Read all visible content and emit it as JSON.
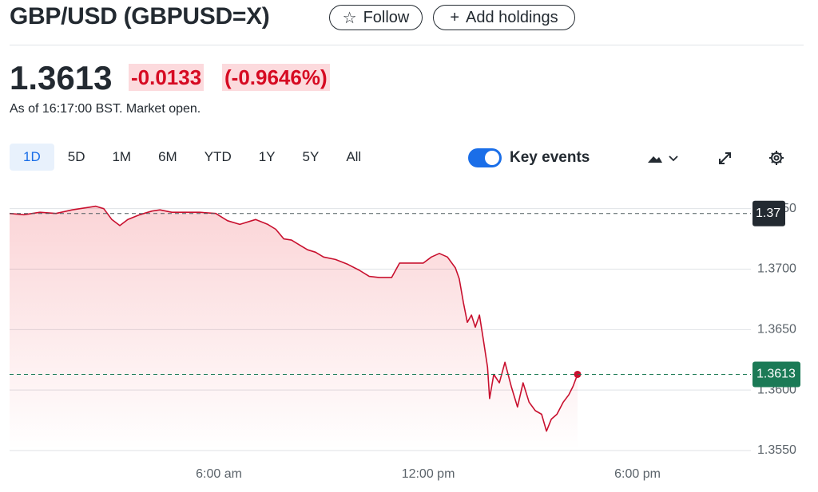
{
  "header": {
    "title": "GBP/USD (GBPUSD=X)",
    "follow": "Follow",
    "add_holdings": "Add holdings"
  },
  "quote": {
    "price": "1.3613",
    "change": "-0.0133",
    "change_percent": "(-0.9646%)",
    "as_of": "As of 16:17:00 BST. Market open."
  },
  "ranges": [
    "1D",
    "5D",
    "1M",
    "6M",
    "YTD",
    "1Y",
    "5Y",
    "All"
  ],
  "selected_range": "1D",
  "toggle": {
    "label": "Key events",
    "on": true
  },
  "chart_data": {
    "type": "line",
    "color": "#c8102e",
    "x": [
      0,
      0.41,
      0.87,
      1.33,
      1.79,
      2.24,
      2.47,
      2.7,
      2.93,
      3.16,
      3.39,
      3.73,
      4.08,
      4.31,
      4.65,
      4.99,
      5.45,
      5.91,
      6.25,
      6.6,
      7.05,
      7.4,
      7.63,
      7.86,
      8.08,
      8.31,
      8.54,
      8.77,
      9.0,
      9.34,
      9.69,
      10.03,
      10.31,
      10.6,
      10.95,
      11.18,
      11.52,
      11.86,
      12.09,
      12.32,
      12.55,
      12.78,
      12.89,
      13.01,
      13.12,
      13.24,
      13.35,
      13.47,
      13.58,
      13.7,
      13.76,
      13.88,
      14.04,
      14.2,
      14.38,
      14.56,
      14.72,
      14.89,
      15.07,
      15.25,
      15.39,
      15.53,
      15.69,
      15.87,
      16.03,
      16.15,
      16.28
    ],
    "values": [
      1.3746,
      1.3745,
      1.3747,
      1.3746,
      1.3749,
      1.3751,
      1.3752,
      1.375,
      1.3741,
      1.3736,
      1.3741,
      1.3745,
      1.3748,
      1.3749,
      1.3747,
      1.3747,
      1.3747,
      1.3746,
      1.374,
      1.3737,
      1.3741,
      1.3737,
      1.3733,
      1.3725,
      1.3724,
      1.372,
      1.3716,
      1.3714,
      1.371,
      1.3708,
      1.3704,
      1.3699,
      1.3694,
      1.3693,
      1.3693,
      1.3705,
      1.3705,
      1.3705,
      1.371,
      1.3713,
      1.371,
      1.3701,
      1.3692,
      1.3672,
      1.3656,
      1.3662,
      1.3652,
      1.3662,
      1.3642,
      1.3619,
      1.3593,
      1.3613,
      1.3606,
      1.3623,
      1.3603,
      1.3586,
      1.3606,
      1.359,
      1.3583,
      1.358,
      1.3566,
      1.3576,
      1.358,
      1.359,
      1.3596,
      1.3603,
      1.3613
    ],
    "xlim": [
      0,
      21.25
    ],
    "xticks": [
      {
        "value": 6,
        "label": "6:00 am"
      },
      {
        "value": 12,
        "label": "12:00 pm"
      },
      {
        "value": 18,
        "label": "6:00 pm"
      }
    ],
    "ylim": [
      1.355,
      1.3761
    ],
    "yticks": [
      {
        "value": 1.355,
        "label": "1.3550"
      },
      {
        "value": 1.36,
        "label": "1.3600"
      },
      {
        "value": 1.365,
        "label": "1.3650"
      },
      {
        "value": 1.37,
        "label": "1.3700"
      },
      {
        "value": 1.375,
        "label": "1.3750"
      }
    ],
    "grid": true,
    "previous_close": {
      "value": 1.3746,
      "label": "1.37"
    },
    "current": 1.3613
  }
}
